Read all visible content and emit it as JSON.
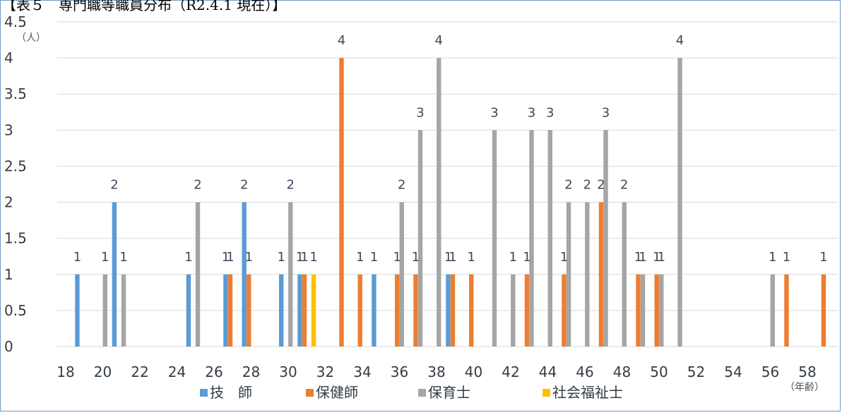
{
  "chart_data": {
    "type": "bar",
    "title": "【表５　専門職等職員分布（R2.4.1 現在）】",
    "ylabel": "（人）",
    "xlabel": "（年齢）",
    "ylim": [
      0,
      4.5
    ],
    "yticks": [
      "0",
      "0.5",
      "1",
      "1.5",
      "2",
      "2.5",
      "3",
      "3.5",
      "4",
      "4.5"
    ],
    "xlim": [
      18,
      59
    ],
    "xticks": [
      "18",
      "20",
      "22",
      "24",
      "26",
      "28",
      "30",
      "32",
      "34",
      "36",
      "38",
      "40",
      "42",
      "44",
      "46",
      "48",
      "50",
      "52",
      "54",
      "56",
      "58"
    ],
    "legend_position": "bottom",
    "grid": "horizontal",
    "series": [
      {
        "name": "技　師",
        "color": "#5b9bd5",
        "points": [
          [
            19,
            1
          ],
          [
            21,
            2
          ],
          [
            25,
            1
          ],
          [
            27,
            1
          ],
          [
            28,
            2
          ],
          [
            30,
            1
          ],
          [
            31,
            1
          ],
          [
            35,
            1
          ],
          [
            39,
            1
          ]
        ]
      },
      {
        "name": "保健師",
        "color": "#ed7d31",
        "points": [
          [
            27,
            1
          ],
          [
            28,
            1
          ],
          [
            31,
            1
          ],
          [
            33,
            4
          ],
          [
            34,
            1
          ],
          [
            36,
            1
          ],
          [
            37,
            1
          ],
          [
            39,
            1
          ],
          [
            40,
            1
          ],
          [
            43,
            1
          ],
          [
            45,
            1
          ],
          [
            47,
            2
          ],
          [
            49,
            1
          ],
          [
            50,
            1
          ],
          [
            57,
            1
          ],
          [
            59,
            1
          ]
        ]
      },
      {
        "name": "保育士",
        "color": "#a5a5a5",
        "points": [
          [
            20,
            1
          ],
          [
            21,
            1
          ],
          [
            25,
            2
          ],
          [
            30,
            2
          ],
          [
            36,
            2
          ],
          [
            37,
            3
          ],
          [
            38,
            4
          ],
          [
            41,
            3
          ],
          [
            42,
            1
          ],
          [
            43,
            3
          ],
          [
            44,
            3
          ],
          [
            45,
            2
          ],
          [
            46,
            2
          ],
          [
            47,
            3
          ],
          [
            48,
            2
          ],
          [
            49,
            1
          ],
          [
            50,
            1
          ],
          [
            51,
            4
          ],
          [
            56,
            1
          ]
        ]
      },
      {
        "name": "社会福祉士",
        "color": "#ffc000",
        "points": [
          [
            31,
            1
          ]
        ]
      }
    ]
  }
}
